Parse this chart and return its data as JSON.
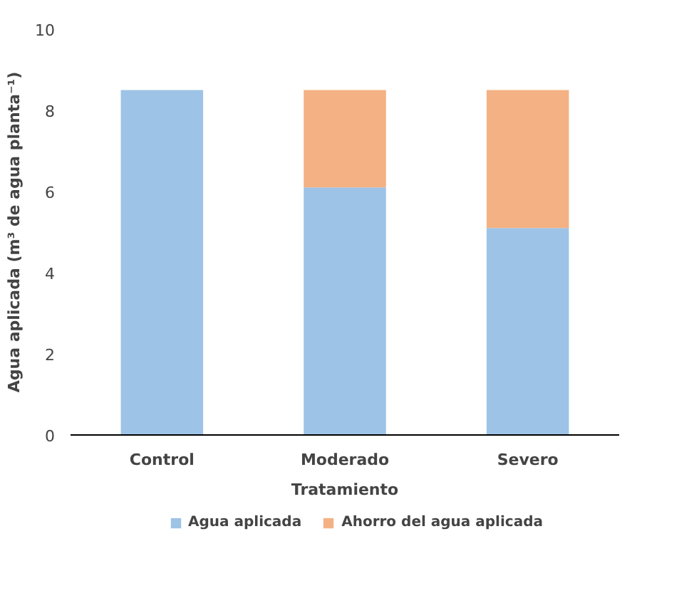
{
  "chart_data": {
    "type": "bar",
    "stacked": true,
    "xlabel": "Tratamiento",
    "ylabel": "Agua aplicada (m³ de agua planta⁻¹)",
    "categories": [
      "Control",
      "Moderado",
      "Severo"
    ],
    "series": [
      {
        "name": "Agua aplicada",
        "color": "#9dc3e6",
        "values": [
          8.5,
          6.1,
          5.1
        ]
      },
      {
        "name": "Ahorro del agua aplicada",
        "color": "#f4b183",
        "values": [
          0,
          2.4,
          3.4
        ]
      }
    ],
    "ylim": [
      0,
      10
    ],
    "yticks": [
      0,
      2,
      4,
      6,
      8,
      10
    ],
    "grid": false,
    "legend": "bottom"
  }
}
